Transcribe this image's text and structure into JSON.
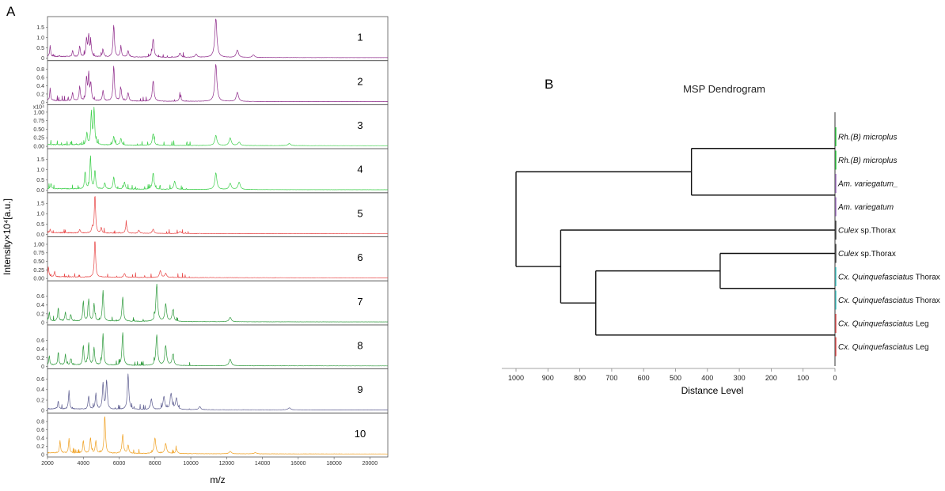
{
  "figure": {
    "panel_a_letter": "A",
    "panel_b_letter": "B"
  },
  "chart_data": [
    {
      "type": "line",
      "panel": "A",
      "xlabel": "m/z",
      "ylabel": "Intensity×10⁴[a.u.]",
      "xlim": [
        2000,
        21000
      ],
      "x_ticks": [
        "2000",
        "4000",
        "6000",
        "8000",
        "10000",
        "12000",
        "14000",
        "16000",
        "18000",
        "20000"
      ],
      "spectra": [
        {
          "label": "1",
          "color": "#8e2a8a",
          "y_ticks": [
            "0",
            "0.5",
            "1.0",
            "1.5"
          ],
          "ymax": 1.9,
          "peaks": [
            [
              2150,
              0.55
            ],
            [
              3400,
              0.3
            ],
            [
              3800,
              0.5
            ],
            [
              4180,
              0.85
            ],
            [
              4300,
              1.0
            ],
            [
              4420,
              0.65
            ],
            [
              5100,
              0.35
            ],
            [
              5700,
              1.55
            ],
            [
              6100,
              0.45
            ],
            [
              6500,
              0.3
            ],
            [
              7900,
              0.9
            ],
            [
              9400,
              0.2
            ],
            [
              10300,
              0.15
            ],
            [
              11400,
              1.9
            ],
            [
              12600,
              0.35
            ],
            [
              13500,
              0.12
            ]
          ]
        },
        {
          "label": "2",
          "color": "#8e2a8a",
          "y_ticks": [
            "0",
            "0.2",
            "0.4",
            "0.6",
            "0.8"
          ],
          "ymax": 0.95,
          "peaks": [
            [
              2150,
              0.3
            ],
            [
              3400,
              0.2
            ],
            [
              3800,
              0.35
            ],
            [
              4180,
              0.55
            ],
            [
              4300,
              0.62
            ],
            [
              4420,
              0.4
            ],
            [
              5100,
              0.25
            ],
            [
              5700,
              0.85
            ],
            [
              6100,
              0.3
            ],
            [
              6500,
              0.2
            ],
            [
              7900,
              0.5
            ],
            [
              9400,
              0.12
            ],
            [
              11400,
              0.9
            ],
            [
              12600,
              0.22
            ]
          ]
        },
        {
          "label": "3",
          "color": "#3ccf4a",
          "y_ticks": [
            "0.00",
            "0.25",
            "0.50",
            "0.75",
            "1.00"
          ],
          "extra_label": "x10⁴",
          "ymax": 1.15,
          "peaks": [
            [
              4200,
              0.35
            ],
            [
              4450,
              0.95
            ],
            [
              4600,
              1.1
            ],
            [
              5700,
              0.25
            ],
            [
              6100,
              0.2
            ],
            [
              7900,
              0.35
            ],
            [
              11400,
              0.3
            ],
            [
              12200,
              0.22
            ],
            [
              12700,
              0.1
            ],
            [
              15500,
              0.06
            ]
          ]
        },
        {
          "label": "4",
          "color": "#3ccf4a",
          "y_ticks": [
            "0.0",
            "0.5",
            "1.0",
            "1.5"
          ],
          "ymax": 1.9,
          "peaks": [
            [
              2200,
              0.25
            ],
            [
              4100,
              0.85
            ],
            [
              4400,
              1.6
            ],
            [
              4650,
              0.9
            ],
            [
              5200,
              0.3
            ],
            [
              5700,
              0.6
            ],
            [
              6300,
              0.35
            ],
            [
              7900,
              0.8
            ],
            [
              9100,
              0.4
            ],
            [
              11400,
              0.8
            ],
            [
              12200,
              0.3
            ],
            [
              12700,
              0.35
            ]
          ]
        },
        {
          "label": "5",
          "color": "#e84646",
          "y_ticks": [
            "0.0",
            "0.5",
            "1.0",
            "1.5"
          ],
          "ymax": 1.9,
          "peaks": [
            [
              2150,
              0.15
            ],
            [
              3800,
              0.15
            ],
            [
              4500,
              0.25
            ],
            [
              4650,
              1.85
            ],
            [
              5000,
              0.25
            ],
            [
              6400,
              0.45
            ],
            [
              7100,
              0.15
            ],
            [
              7900,
              0.2
            ],
            [
              9400,
              0.1
            ]
          ]
        },
        {
          "label": "6",
          "color": "#e84646",
          "y_ticks": [
            "0.00",
            "0.25",
            "0.50",
            "0.75",
            "1.00"
          ],
          "ymax": 1.15,
          "peaks": [
            [
              2050,
              0.3
            ],
            [
              2400,
              0.15
            ],
            [
              4650,
              1.1
            ],
            [
              6300,
              0.12
            ],
            [
              8300,
              0.2
            ],
            [
              8600,
              0.12
            ]
          ]
        },
        {
          "label": "7",
          "color": "#2e9a3c",
          "y_ticks": [
            "0",
            "0.2",
            "0.4",
            "0.6"
          ],
          "ymax": 0.9,
          "peaks": [
            [
              2100,
              0.2
            ],
            [
              2600,
              0.3
            ],
            [
              3000,
              0.2
            ],
            [
              3300,
              0.15
            ],
            [
              4000,
              0.45
            ],
            [
              4300,
              0.5
            ],
            [
              4600,
              0.4
            ],
            [
              5100,
              0.7
            ],
            [
              6200,
              0.55
            ],
            [
              8100,
              0.85
            ],
            [
              8600,
              0.4
            ],
            [
              9000,
              0.25
            ],
            [
              12200,
              0.1
            ]
          ]
        },
        {
          "label": "8",
          "color": "#2e9a3c",
          "y_ticks": [
            "0",
            "0.2",
            "0.4",
            "0.6"
          ],
          "ymax": 0.9,
          "peaks": [
            [
              2100,
              0.2
            ],
            [
              2600,
              0.3
            ],
            [
              3000,
              0.25
            ],
            [
              3300,
              0.15
            ],
            [
              4000,
              0.45
            ],
            [
              4300,
              0.5
            ],
            [
              4600,
              0.4
            ],
            [
              5100,
              0.72
            ],
            [
              6200,
              0.75
            ],
            [
              8100,
              0.7
            ],
            [
              8600,
              0.45
            ],
            [
              9000,
              0.25
            ],
            [
              12200,
              0.15
            ]
          ]
        },
        {
          "label": "9",
          "color": "#5b5b8f",
          "y_ticks": [
            "0",
            "0.2",
            "0.4",
            "0.6"
          ],
          "ymax": 0.75,
          "peaks": [
            [
              2600,
              0.15
            ],
            [
              3200,
              0.35
            ],
            [
              4300,
              0.25
            ],
            [
              4700,
              0.3
            ],
            [
              5100,
              0.5
            ],
            [
              5300,
              0.55
            ],
            [
              6500,
              0.68
            ],
            [
              7800,
              0.2
            ],
            [
              8500,
              0.25
            ],
            [
              8900,
              0.3
            ],
            [
              9200,
              0.22
            ],
            [
              10500,
              0.06
            ],
            [
              15500,
              0.04
            ]
          ]
        },
        {
          "label": "10",
          "color": "#f0a020",
          "y_ticks": [
            "0",
            "0.2",
            "0.4",
            "0.6",
            "0.8"
          ],
          "ymax": 0.95,
          "peaks": [
            [
              2700,
              0.3
            ],
            [
              3200,
              0.35
            ],
            [
              4000,
              0.3
            ],
            [
              4400,
              0.38
            ],
            [
              4700,
              0.3
            ],
            [
              5200,
              0.92
            ],
            [
              6200,
              0.45
            ],
            [
              6500,
              0.2
            ],
            [
              8000,
              0.38
            ],
            [
              8600,
              0.25
            ],
            [
              9200,
              0.1
            ],
            [
              12200,
              0.06
            ],
            [
              13600,
              0.03
            ]
          ]
        }
      ]
    },
    {
      "type": "dendrogram",
      "panel": "B",
      "title": "MSP Dendrogram",
      "xlabel": "Distance Level",
      "x_ticks": [
        1000,
        900,
        800,
        700,
        600,
        500,
        400,
        300,
        200,
        100,
        0
      ],
      "xlim": [
        1000,
        0
      ],
      "leaves": [
        {
          "italic": "Rh.(B) microplus",
          "rest": "",
          "color": "#2ecc40"
        },
        {
          "italic": "Rh.(B) microplus",
          "rest": "",
          "color": "#2ecc40"
        },
        {
          "italic": "Am. variegatum_",
          "rest": "",
          "color": "#a070c0"
        },
        {
          "italic": "Am. variegatum",
          "rest": "",
          "color": "#a070c0"
        },
        {
          "italic": "Culex",
          "rest": " sp.Thorax",
          "color": "#444444"
        },
        {
          "italic": "Culex",
          "rest": " sp.Thorax",
          "color": "#444444"
        },
        {
          "italic": "Cx. Quinquefasciatus",
          "rest": " Thorax",
          "color": "#40c8c8"
        },
        {
          "italic": "Cx. Quinquefasciatus",
          "rest": " Thorax",
          "color": "#40c8c8"
        },
        {
          "italic": "Cx. Quinquefasciatus",
          "rest": " Leg",
          "color": "#e05050"
        },
        {
          "italic": "Cx. Quinquefasciatus",
          "rest": " Leg",
          "color": "#e05050"
        }
      ],
      "merges": [
        {
          "a": 0,
          "b": 1,
          "height": 0
        },
        {
          "a": 2,
          "b": 3,
          "height": 0
        },
        {
          "a": 8,
          "b": 9,
          "height": 0
        },
        {
          "a": 6,
          "b": 7,
          "height": 0
        },
        {
          "a": 5,
          "b": "c3",
          "height": 360
        },
        {
          "a": "c0",
          "b": "c1",
          "height": 450
        },
        {
          "a": "c4",
          "b": "c2",
          "height": 750
        },
        {
          "a": 4,
          "b": "c6",
          "height": 860
        },
        {
          "a": "c5",
          "b": "c7",
          "height": 1000
        }
      ]
    }
  ]
}
